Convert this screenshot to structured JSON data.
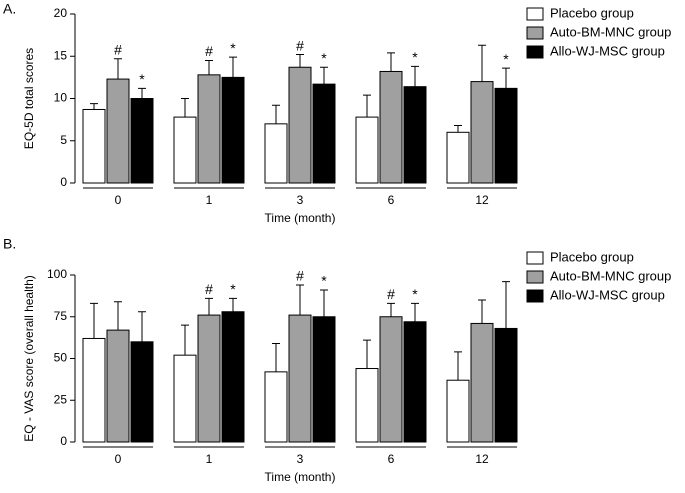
{
  "chart_data": [
    {
      "type": "bar",
      "panel": "A.",
      "ylabel": "EQ-5D total scores",
      "xlabel": "Time (month)",
      "categories": [
        "0",
        "1",
        "3",
        "6",
        "12"
      ],
      "ylim": [
        0,
        20
      ],
      "yticks": [
        0,
        5,
        10,
        15,
        20
      ],
      "series": [
        {
          "name": "Placebo group",
          "color": "#ffffff",
          "values": [
            8.7,
            7.8,
            7.0,
            7.8,
            6.0
          ],
          "errors": [
            0.7,
            2.2,
            2.2,
            2.6,
            0.8
          ],
          "annotations": [
            null,
            null,
            null,
            null,
            null
          ]
        },
        {
          "name": "Auto-BM-MNC group",
          "color": "#a0a0a0",
          "values": [
            12.3,
            12.8,
            13.7,
            13.2,
            12.0
          ],
          "errors": [
            2.4,
            1.7,
            1.5,
            2.2,
            4.3
          ],
          "annotations": [
            "#",
            "#",
            "#",
            null,
            null
          ]
        },
        {
          "name": "Allo-WJ-MSC group",
          "color": "#000000",
          "values": [
            10.0,
            12.5,
            11.7,
            11.4,
            11.2
          ],
          "errors": [
            1.2,
            2.4,
            2.0,
            2.4,
            2.4
          ],
          "annotations": [
            "*",
            "*",
            "*",
            "*",
            "*"
          ]
        }
      ]
    },
    {
      "type": "bar",
      "panel": "B.",
      "ylabel": "EQ - VAS score (overall health)",
      "xlabel": "Time (month)",
      "categories": [
        "0",
        "1",
        "3",
        "6",
        "12"
      ],
      "ylim": [
        0,
        100
      ],
      "yticks": [
        0,
        25,
        50,
        75,
        100
      ],
      "series": [
        {
          "name": "Placebo group",
          "color": "#ffffff",
          "values": [
            62,
            52,
            42,
            44,
            37
          ],
          "errors": [
            21,
            18,
            17,
            17,
            17
          ],
          "annotations": [
            null,
            null,
            null,
            null,
            null
          ]
        },
        {
          "name": "Auto-BM-MNC group",
          "color": "#a0a0a0",
          "values": [
            67,
            76,
            76,
            75,
            71
          ],
          "errors": [
            17,
            10,
            18,
            8,
            14
          ],
          "annotations": [
            null,
            "#",
            "#",
            "#",
            null
          ]
        },
        {
          "name": "Allo-WJ-MSC group",
          "color": "#000000",
          "values": [
            60,
            78,
            75,
            72,
            68
          ],
          "errors": [
            18,
            8,
            16,
            11,
            28
          ],
          "annotations": [
            null,
            "*",
            "*",
            "*",
            null
          ]
        }
      ]
    }
  ]
}
